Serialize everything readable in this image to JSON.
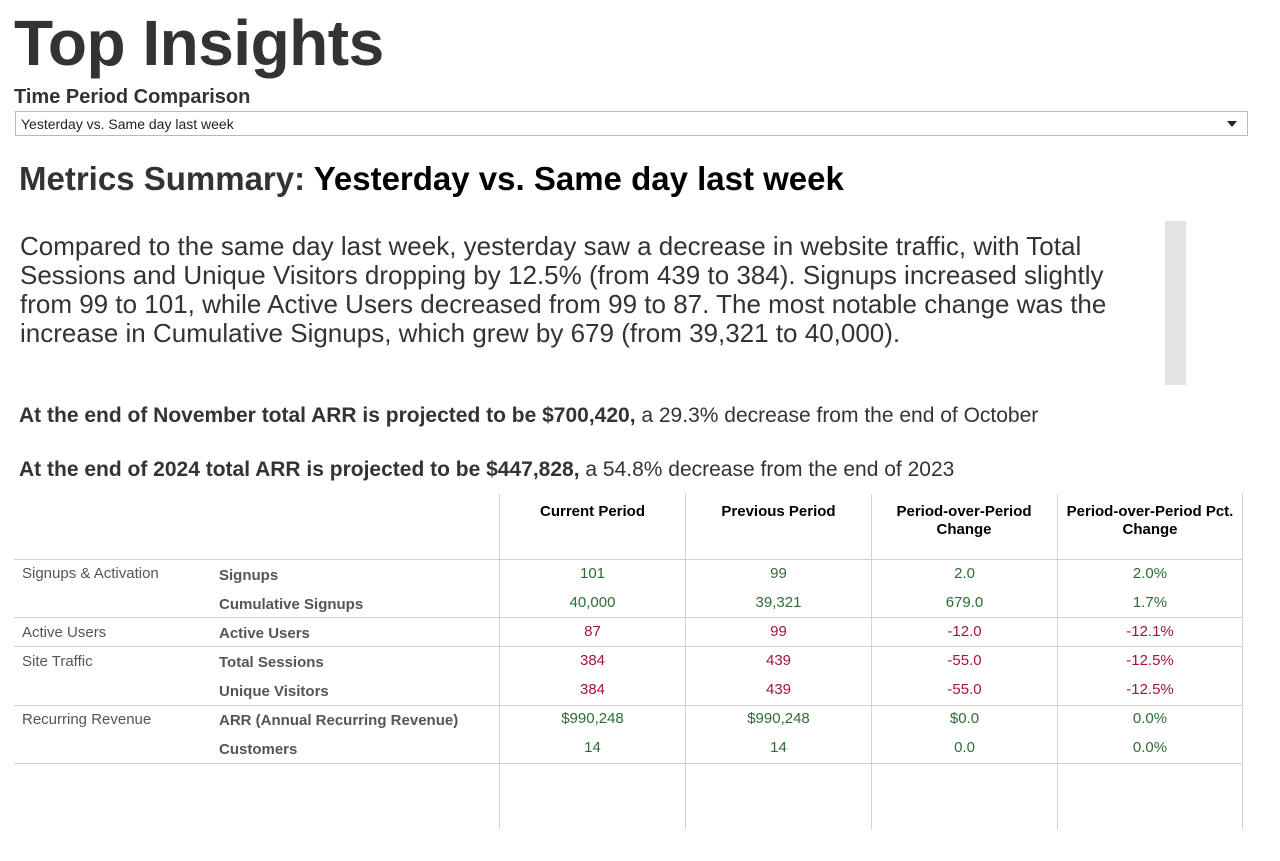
{
  "page": {
    "title": "Top Insights"
  },
  "filter": {
    "label": "Time Period Comparison",
    "selected": "Yesterday vs. Same day last week"
  },
  "summary": {
    "heading_prefix": "Metrics Summary:",
    "heading_period": "Yesterday vs. Same day last week",
    "narrative": "Compared to the same day last week, yesterday saw a decrease in website traffic, with Total Sessions and Unique Visitors dropping by 12.5% (from 439 to 384).  Signups increased slightly from 99 to 101, while Active Users decreased from 99 to 87.  The most notable change was the increase in Cumulative Signups, which grew by 679 (from 39,321 to 40,000)."
  },
  "projections": [
    {
      "bold": "At the end of November total ARR is projected to be $700,420,",
      "rest": " a 29.3% decrease from the end of October"
    },
    {
      "bold": "At the end of 2024 total ARR is projected to be $447,828,",
      "rest": " a 54.8% decrease from the end of 2023"
    }
  ],
  "table": {
    "headers": [
      "Current Period",
      "Previous Period",
      "Period-over-Period Change",
      "Period-over-Period Pct. Change"
    ],
    "groups": [
      "Signups & Activation",
      "Active Users",
      "Site Traffic",
      "Recurring Revenue"
    ],
    "rows": [
      {
        "metric": "Signups",
        "current": "101",
        "previous": "99",
        "change": "2.0",
        "pct": "2.0%"
      },
      {
        "metric": "Cumulative Signups",
        "current": "40,000",
        "previous": "39,321",
        "change": "679.0",
        "pct": "1.7%"
      },
      {
        "metric": "Active Users",
        "current": "87",
        "previous": "99",
        "change": "-12.0",
        "pct": "-12.1%"
      },
      {
        "metric": "Total Sessions",
        "current": "384",
        "previous": "439",
        "change": "-55.0",
        "pct": "-12.5%"
      },
      {
        "metric": "Unique Visitors",
        "current": "384",
        "previous": "439",
        "change": "-55.0",
        "pct": "-12.5%"
      },
      {
        "metric": "ARR (Annual Recurring Revenue)",
        "current": "$990,248",
        "previous": "$990,248",
        "change": "$0.0",
        "pct": "0.0%"
      },
      {
        "metric": "Customers",
        "current": "14",
        "previous": "14",
        "change": "0.0",
        "pct": "0.0%"
      }
    ]
  },
  "colors": {
    "positive": "#2e6b35",
    "negative": "#a3143f",
    "text": "#333333"
  }
}
